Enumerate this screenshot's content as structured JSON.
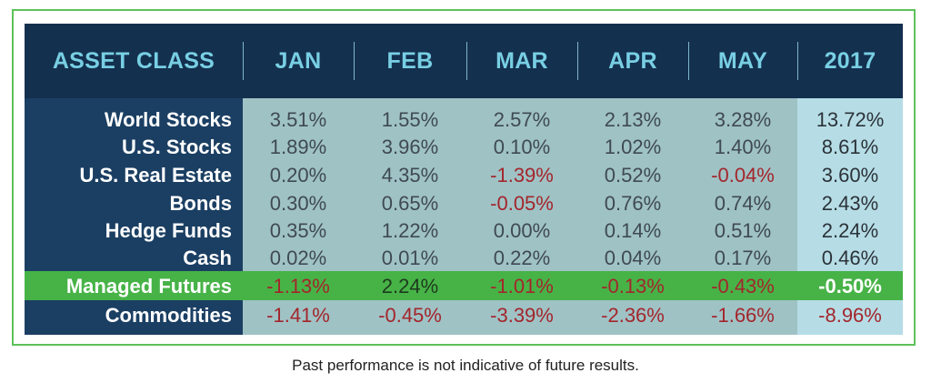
{
  "table": {
    "headers": [
      "ASSET CLASS",
      "JAN",
      "FEB",
      "MAR",
      "APR",
      "MAY",
      "2017"
    ],
    "rows": [
      {
        "label": "World Stocks",
        "values": [
          "3.51%",
          "1.55%",
          "2.57%",
          "2.13%",
          "3.28%",
          "13.72%"
        ]
      },
      {
        "label": "U.S. Stocks",
        "values": [
          "1.89%",
          "3.96%",
          "0.10%",
          "1.02%",
          "1.40%",
          "8.61%"
        ]
      },
      {
        "label": "U.S. Real Estate",
        "values": [
          "0.20%",
          "4.35%",
          "-1.39%",
          "0.52%",
          "-0.04%",
          "3.60%"
        ]
      },
      {
        "label": "Bonds",
        "values": [
          "0.30%",
          "0.65%",
          "-0.05%",
          "0.76%",
          "0.74%",
          "2.43%"
        ]
      },
      {
        "label": "Hedge Funds",
        "values": [
          "0.35%",
          "1.22%",
          "0.00%",
          "0.14%",
          "0.51%",
          "2.24%"
        ]
      },
      {
        "label": "Cash",
        "values": [
          "0.02%",
          "0.01%",
          "0.22%",
          "0.04%",
          "0.17%",
          "0.46%"
        ]
      },
      {
        "label": "Managed Futures",
        "values": [
          "-1.13%",
          "2.24%",
          "-1.01%",
          "-0.13%",
          "-0.43%",
          "-0.50%"
        ],
        "highlight": true
      },
      {
        "label": "Commodities",
        "values": [
          "-1.41%",
          "-0.45%",
          "-3.39%",
          "-2.36%",
          "-1.66%",
          "-8.96%"
        ]
      }
    ]
  },
  "colors": {
    "header_bg": "#14304f",
    "header_text": "#78cfe3",
    "label_bg": "#1b3f63",
    "months_bg": "#9fc2c5",
    "year_bg": "#b6dde6",
    "highlight_row": "#47b347",
    "negative_text": "#a3262c",
    "border": "#5cc25a"
  },
  "disclaimer": "Past performance is not indicative of future results."
}
